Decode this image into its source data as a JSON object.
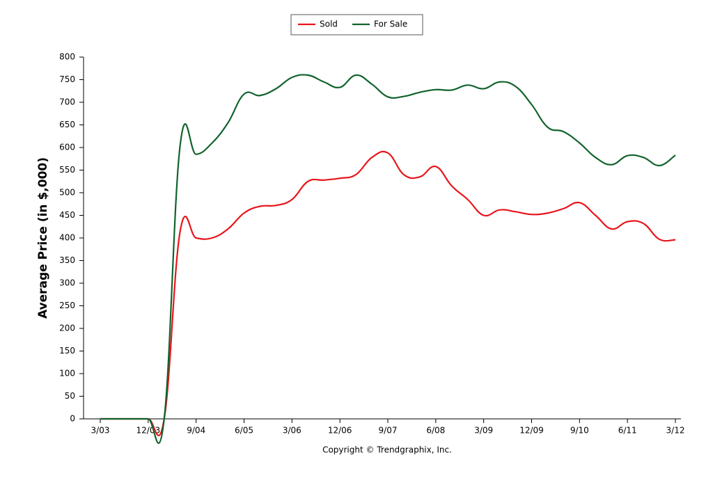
{
  "chart_data": {
    "type": "line",
    "y_label": "Average Price (in $,000)",
    "footer": "Copyright © Trendgraphix, Inc.",
    "legend": "top",
    "categories": [
      "3/03",
      null,
      null,
      "12/03",
      null,
      null,
      "9/04",
      null,
      null,
      "6/05",
      null,
      null,
      "3/06",
      null,
      null,
      "12/06",
      null,
      null,
      "9/07",
      null,
      null,
      "6/08",
      null,
      null,
      "3/09",
      null,
      null,
      "12/09",
      null,
      null,
      "9/10",
      null,
      null,
      "6/11",
      null,
      null,
      "3/12"
    ],
    "series": [
      {
        "name": "Sold",
        "color": "#e8141b",
        "values": [
          0,
          0,
          0,
          0,
          0,
          415,
          400,
          400,
          420,
          455,
          470,
          472,
          485,
          525,
          528,
          532,
          540,
          578,
          588,
          540,
          535,
          558,
          515,
          485,
          450,
          462,
          458,
          452,
          455,
          465,
          478,
          450,
          420,
          436,
          432,
          397,
          396
        ]
      },
      {
        "name": "For Sale",
        "color": "#11632d",
        "values": [
          0,
          0,
          0,
          0,
          0,
          605,
          585,
          610,
          655,
          718,
          715,
          730,
          755,
          760,
          745,
          733,
          760,
          740,
          712,
          713,
          722,
          728,
          727,
          738,
          730,
          745,
          735,
          695,
          645,
          635,
          610,
          578,
          562,
          582,
          578,
          560,
          583
        ]
      }
    ],
    "ylim": [
      0,
      800
    ],
    "yticks": [
      0,
      50,
      100,
      150,
      200,
      250,
      300,
      350,
      400,
      450,
      500,
      550,
      600,
      650,
      700,
      750,
      800
    ]
  }
}
